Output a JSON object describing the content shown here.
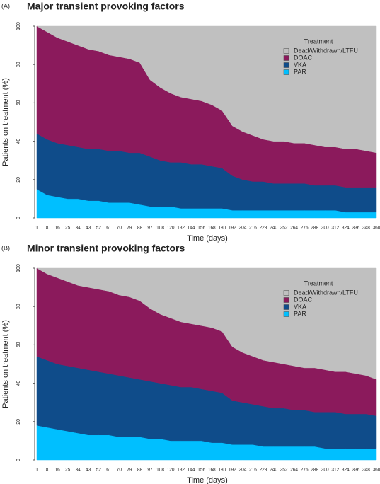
{
  "chart_data": [
    {
      "type": "stacked_area",
      "panel": "(A)",
      "title": "Major transient provoking factors",
      "xlabel": "Time (days)",
      "ylabel": "Patients on treatment (%)",
      "x": [
        1,
        8,
        16,
        25,
        34,
        43,
        52,
        61,
        70,
        79,
        88,
        97,
        108,
        120,
        132,
        144,
        156,
        168,
        180,
        192,
        204,
        216,
        228,
        240,
        252,
        264,
        276,
        288,
        300,
        312,
        324,
        336,
        348,
        360
      ],
      "ylim": [
        0,
        100
      ],
      "yticks": [
        0,
        20,
        40,
        60,
        80,
        100
      ],
      "legend_title": "Treatment",
      "legend_position": "top right",
      "series": [
        {
          "name": "PAR",
          "color": "#00bfff",
          "values": [
            15,
            12,
            11,
            10,
            10,
            9,
            9,
            8,
            8,
            8,
            7,
            6,
            6,
            6,
            5,
            5,
            5,
            5,
            5,
            4,
            4,
            4,
            4,
            4,
            4,
            4,
            4,
            4,
            4,
            4,
            3,
            3,
            3,
            3
          ]
        },
        {
          "name": "VKA",
          "color": "#0f4c8a",
          "values": [
            29,
            29,
            28,
            28,
            27,
            27,
            27,
            27,
            27,
            26,
            27,
            26,
            24,
            23,
            24,
            23,
            23,
            22,
            21,
            18,
            16,
            15,
            15,
            14,
            14,
            14,
            14,
            13,
            13,
            13,
            13,
            13,
            13,
            13
          ]
        },
        {
          "name": "DOAC",
          "color": "#8b1a5c",
          "values": [
            56,
            56,
            55,
            54,
            53,
            52,
            51,
            50,
            49,
            49,
            47,
            40,
            38,
            36,
            34,
            34,
            33,
            32,
            30,
            26,
            25,
            24,
            22,
            22,
            22,
            21,
            21,
            21,
            20,
            20,
            20,
            20,
            19,
            18
          ]
        },
        {
          "name": "Dead/Withdrawn/LTFU",
          "color": "#c0c0c0",
          "values": [
            0,
            3,
            6,
            8,
            10,
            12,
            13,
            15,
            16,
            17,
            19,
            28,
            32,
            35,
            37,
            38,
            39,
            41,
            44,
            52,
            55,
            57,
            59,
            60,
            60,
            61,
            61,
            62,
            63,
            63,
            64,
            64,
            65,
            66
          ]
        }
      ]
    },
    {
      "type": "stacked_area",
      "panel": "(B)",
      "title": "Minor transient provoking factors",
      "xlabel": "Time (days)",
      "ylabel": "Patients on treatment (%)",
      "x": [
        1,
        8,
        16,
        25,
        34,
        43,
        52,
        61,
        70,
        79,
        88,
        97,
        108,
        120,
        132,
        144,
        156,
        168,
        180,
        192,
        204,
        216,
        228,
        240,
        252,
        264,
        276,
        288,
        300,
        312,
        324,
        336,
        348,
        360
      ],
      "ylim": [
        0,
        100
      ],
      "yticks": [
        0,
        20,
        40,
        60,
        80,
        100
      ],
      "legend_title": "Treatment",
      "legend_position": "top right",
      "series": [
        {
          "name": "PAR",
          "color": "#00bfff",
          "values": [
            18,
            17,
            16,
            15,
            14,
            13,
            13,
            13,
            12,
            12,
            12,
            11,
            11,
            10,
            10,
            10,
            10,
            9,
            9,
            8,
            8,
            8,
            7,
            7,
            7,
            7,
            7,
            7,
            6,
            6,
            6,
            6,
            6,
            6
          ]
        },
        {
          "name": "VKA",
          "color": "#0f4c8a",
          "values": [
            36,
            35,
            34,
            34,
            34,
            34,
            33,
            32,
            32,
            31,
            30,
            30,
            29,
            29,
            28,
            28,
            27,
            27,
            26,
            23,
            22,
            21,
            21,
            20,
            20,
            19,
            19,
            18,
            19,
            19,
            18,
            18,
            18,
            17
          ]
        },
        {
          "name": "DOAC",
          "color": "#8b1a5c",
          "values": [
            46,
            45,
            45,
            44,
            43,
            43,
            43,
            43,
            42,
            42,
            41,
            38,
            36,
            35,
            34,
            33,
            33,
            33,
            32,
            28,
            26,
            25,
            24,
            24,
            23,
            23,
            22,
            23,
            22,
            21,
            22,
            21,
            20,
            19
          ]
        },
        {
          "name": "Dead/Withdrawn/LTFU",
          "color": "#c0c0c0",
          "values": [
            0,
            3,
            5,
            7,
            9,
            10,
            11,
            12,
            14,
            15,
            17,
            21,
            24,
            26,
            28,
            29,
            30,
            31,
            33,
            41,
            44,
            46,
            48,
            49,
            50,
            51,
            52,
            52,
            53,
            54,
            54,
            55,
            56,
            58
          ]
        }
      ]
    }
  ]
}
